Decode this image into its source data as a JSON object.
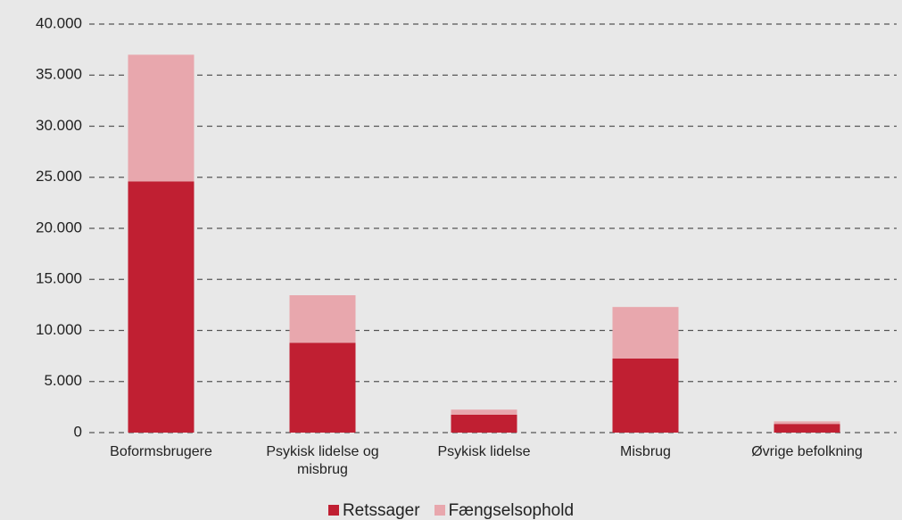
{
  "chart_data": {
    "type": "stacked_bar",
    "categories": [
      "Boformsbrugere",
      "Psykisk lidelse og misbrug",
      "Psykisk lidelse",
      "Misbrug",
      "Øvrige befolkning"
    ],
    "series": [
      {
        "name": "Retssager",
        "color": "#c01f32",
        "values": [
          24600,
          8800,
          1750,
          7250,
          850
        ]
      },
      {
        "name": "Fængselsophold",
        "color": "#e8a7ad",
        "values": [
          12400,
          4650,
          500,
          5050,
          250
        ]
      }
    ],
    "ylim": [
      0,
      40000
    ],
    "yticks": [
      0,
      {
        "value": 5000,
        "label": "5.000"
      },
      {
        "value": 10000,
        "label": "10.000"
      },
      {
        "value": 15000,
        "label": "15.000"
      },
      {
        "value": 20000,
        "label": "20.000"
      },
      {
        "value": 25000,
        "label": "25.000"
      },
      {
        "value": 30000,
        "label": "30.000"
      },
      {
        "value": 35000,
        "label": "35.000"
      },
      {
        "value": 40000,
        "label": "40.000"
      }
    ],
    "grid": true,
    "legend": "bottom"
  }
}
